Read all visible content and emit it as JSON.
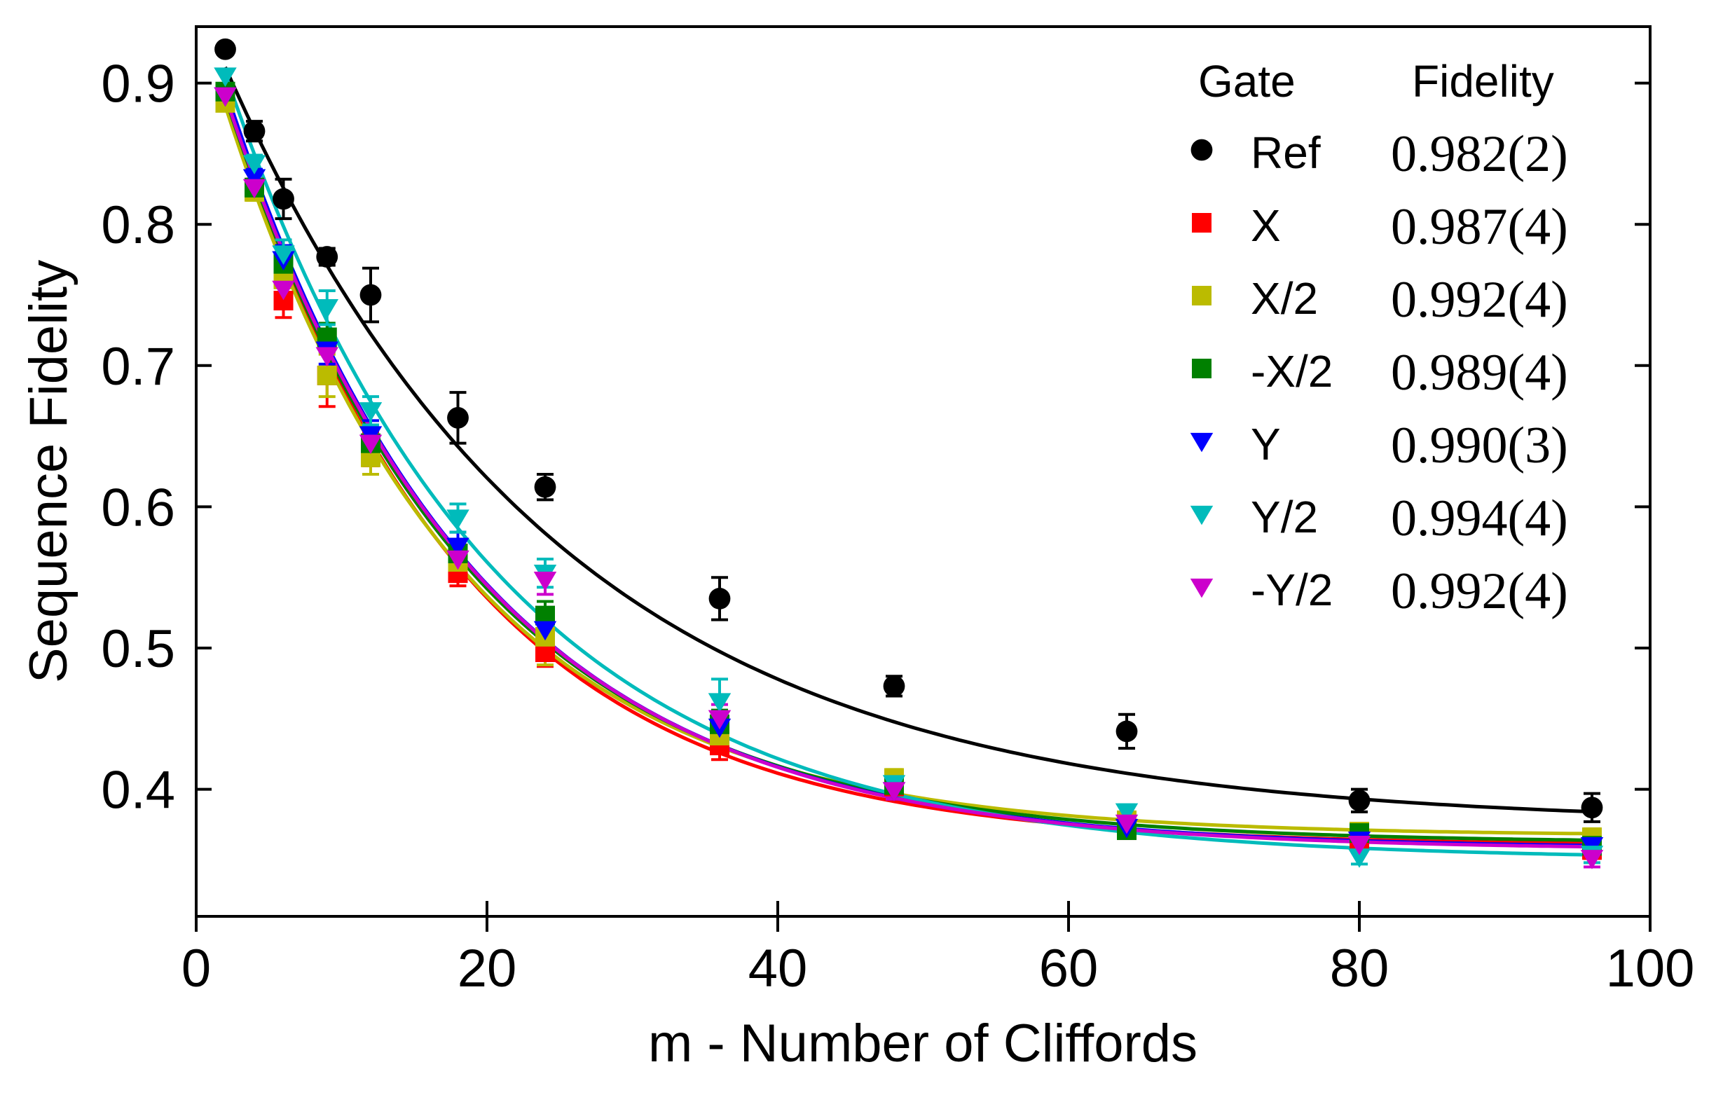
{
  "chart_data": {
    "type": "scatter",
    "xlabel": "m - Number of Cliffords",
    "ylabel": "Sequence Fidelity",
    "xlim": [
      0,
      100
    ],
    "ylim": [
      0.31,
      0.94
    ],
    "x_ticks": [
      0,
      20,
      40,
      60,
      80,
      100
    ],
    "x_tick_labels": [
      "0",
      "20",
      "40",
      "60",
      "80",
      "100"
    ],
    "y_ticks": [
      0.4,
      0.5,
      0.6,
      0.7,
      0.8,
      0.9
    ],
    "y_tick_labels": [
      "0.4",
      "0.5",
      "0.6",
      "0.7",
      "0.8",
      "0.9"
    ],
    "grid": false,
    "legend": {
      "placement": "top-right",
      "header_gate": "Gate",
      "header_fidelity": "Fidelity"
    },
    "x": [
      2,
      4,
      6,
      9,
      12,
      18,
      24,
      36,
      48,
      64,
      80,
      96
    ],
    "series": [
      {
        "name": "Ref",
        "fidelity": "0.982(2)",
        "color": "#000000",
        "marker": "circle",
        "values": [
          0.924,
          0.866,
          0.818,
          0.777,
          0.75,
          0.663,
          0.614,
          0.535,
          0.473,
          0.441,
          0.392,
          0.387
        ],
        "errors": [
          0.0,
          0.007,
          0.014,
          0.006,
          0.019,
          0.018,
          0.009,
          0.015,
          0.007,
          0.012,
          0.008,
          0.01
        ],
        "fit": {
          "A": 0.585,
          "r": 0.9575,
          "B": 0.375
        }
      },
      {
        "name": "X",
        "fidelity": "0.987(4)",
        "color": "#ff0000",
        "marker": "square",
        "values": [
          0.892,
          0.826,
          0.746,
          0.693,
          0.641,
          0.553,
          0.497,
          0.431,
          0.402,
          0.371,
          0.363,
          0.357
        ],
        "errors": [
          0.0,
          0.006,
          0.012,
          0.022,
          0.012,
          0.009,
          0.01,
          0.01,
          0.006,
          0.005,
          0.005,
          0.006
        ],
        "fit": {
          "A": 0.6,
          "r": 0.9404,
          "B": 0.36
        }
      },
      {
        "name": "X/2",
        "fidelity": "0.992(4)",
        "color": "#bbbb00",
        "marker": "square",
        "values": [
          0.886,
          0.823,
          0.761,
          0.693,
          0.635,
          0.561,
          0.508,
          0.438,
          0.408,
          0.378,
          0.37,
          0.366
        ],
        "errors": [
          0.0,
          0.006,
          0.012,
          0.015,
          0.012,
          0.01,
          0.02,
          0.01,
          0.006,
          0.005,
          0.005,
          0.006
        ],
        "fit": {
          "A": 0.585,
          "r": 0.94,
          "B": 0.367
        }
      },
      {
        "name": "-X/2",
        "fidelity": "0.989(4)",
        "color": "#008000",
        "marker": "square",
        "values": [
          0.894,
          0.826,
          0.772,
          0.72,
          0.645,
          0.567,
          0.523,
          0.446,
          0.403,
          0.371,
          0.369,
          0.36
        ],
        "errors": [
          0.0,
          0.006,
          0.01,
          0.01,
          0.01,
          0.01,
          0.01,
          0.01,
          0.006,
          0.005,
          0.005,
          0.006
        ],
        "fit": {
          "A": 0.595,
          "r": 0.942,
          "B": 0.362
        }
      },
      {
        "name": "Y",
        "fidelity": "0.990(3)",
        "color": "#0000ff",
        "marker": "triangle",
        "values": [
          0.891,
          0.833,
          0.775,
          0.711,
          0.651,
          0.572,
          0.513,
          0.444,
          0.399,
          0.373,
          0.364,
          0.36
        ],
        "errors": [
          0.0,
          0.006,
          0.01,
          0.01,
          0.01,
          0.01,
          0.01,
          0.01,
          0.006,
          0.005,
          0.005,
          0.006
        ],
        "fit": {
          "A": 0.605,
          "r": 0.943,
          "B": 0.358
        }
      },
      {
        "name": "Y/2",
        "fidelity": "0.994(4)",
        "color": "#00bbbb",
        "marker": "triangle",
        "values": [
          0.905,
          0.843,
          0.779,
          0.741,
          0.668,
          0.592,
          0.553,
          0.462,
          0.404,
          0.384,
          0.352,
          0.354
        ],
        "errors": [
          0.0,
          0.006,
          0.01,
          0.012,
          0.01,
          0.01,
          0.01,
          0.016,
          0.006,
          0.005,
          0.005,
          0.006
        ],
        "fit": {
          "A": 0.62,
          "r": 0.9475,
          "B": 0.35
        }
      },
      {
        "name": "-Y/2",
        "fidelity": "0.992(4)",
        "color": "#cc00cc",
        "marker": "triangle",
        "values": [
          0.891,
          0.826,
          0.754,
          0.707,
          0.645,
          0.563,
          0.548,
          0.45,
          0.399,
          0.376,
          0.361,
          0.351
        ],
        "errors": [
          0.0,
          0.006,
          0.01,
          0.01,
          0.01,
          0.01,
          0.01,
          0.01,
          0.006,
          0.005,
          0.005,
          0.006
        ],
        "fit": {
          "A": 0.6,
          "r": 0.9435,
          "B": 0.357
        }
      }
    ]
  }
}
